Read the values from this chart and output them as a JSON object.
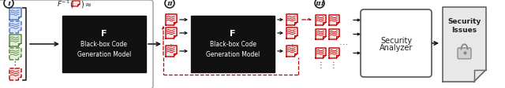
{
  "fig_width": 6.4,
  "fig_height": 1.13,
  "bg_color": "#ffffff",
  "box_color": "#111111",
  "box_text_f": "F",
  "box_text_line2": "Black-box Code",
  "box_text_line3": "Generation Model",
  "security_text": "Security\nAnalyzer",
  "issues_line1": "Security",
  "issues_line2": "Issues",
  "circle1_label": "I",
  "circle2_label": "II",
  "circle3_label": "III",
  "doc_blue": "#4472c4",
  "doc_blue_fill": "#d9e2f3",
  "doc_green": "#548235",
  "doc_green_fill": "#e2efda",
  "doc_red": "#c00000",
  "doc_red_fill": "#fce4e4",
  "doc_gray": "#808080",
  "arrow_color": "#111111",
  "dashed_color": "#c00000",
  "text_white": "#ffffff",
  "text_dark": "#222222",
  "rounded_box_ec": "#aaaaaa",
  "sec_box_ec": "#555555",
  "issues_fill": "#e8e8e8",
  "bracket_color": "#333333"
}
